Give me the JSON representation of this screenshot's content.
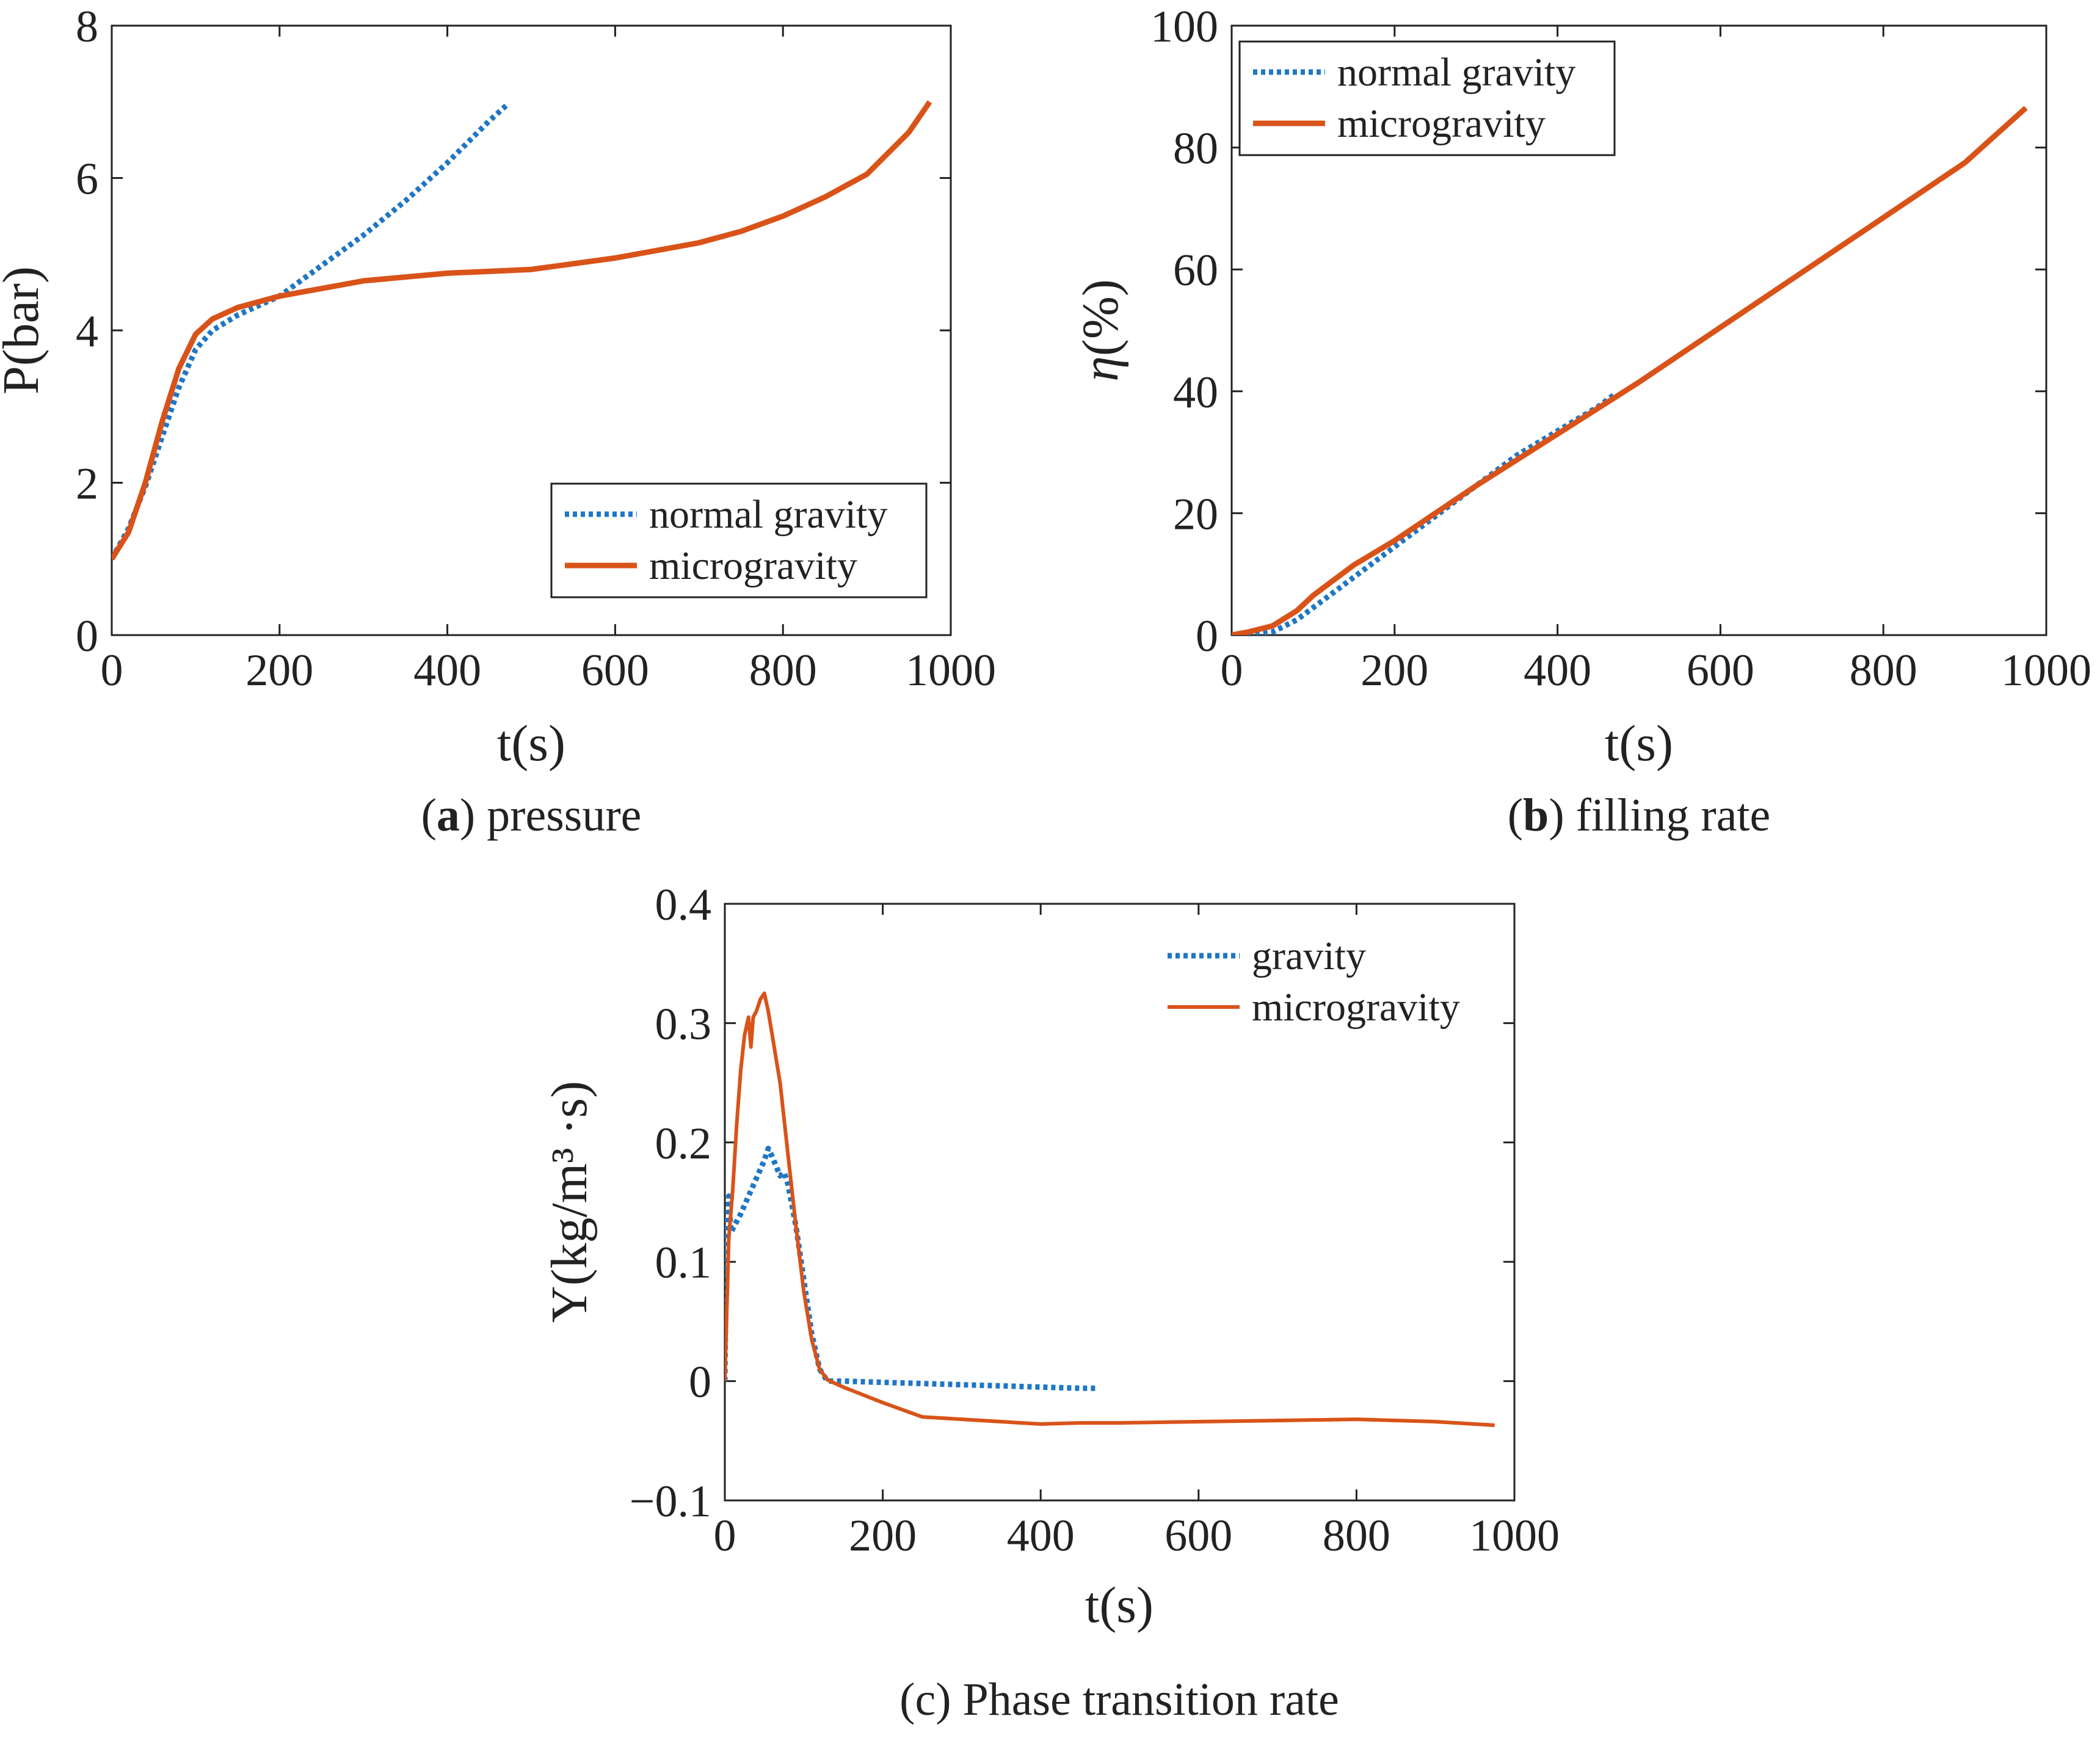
{
  "colors": {
    "normal_gravity": "#1f77c4",
    "microgravity": "#d95319",
    "axis": "#222222"
  },
  "chart_data": [
    {
      "type": "line",
      "id": "pressure",
      "caption": {
        "label": "a",
        "text": "pressure"
      },
      "xlabel": "t(s)",
      "ylabel": "P(bar)",
      "xlim": [
        0,
        1000
      ],
      "ylim": [
        0,
        8
      ],
      "xticks": [
        "0",
        "200",
        "400",
        "600",
        "800",
        "1000"
      ],
      "yticks": [
        "0",
        "2",
        "4",
        "6",
        "8"
      ],
      "legend_position": "bottom-right",
      "series": [
        {
          "name": "normal gravity",
          "style": "dotted",
          "x": [
            0,
            20,
            40,
            60,
            80,
            100,
            120,
            150,
            200,
            250,
            300,
            350,
            400,
            450,
            470
          ],
          "y": [
            1.0,
            1.4,
            1.95,
            2.6,
            3.25,
            3.75,
            4.0,
            4.2,
            4.45,
            4.85,
            5.25,
            5.7,
            6.2,
            6.75,
            6.95
          ]
        },
        {
          "name": "microgravity",
          "style": "solid",
          "x": [
            0,
            20,
            40,
            60,
            80,
            100,
            120,
            150,
            200,
            300,
            400,
            500,
            600,
            700,
            750,
            800,
            850,
            900,
            950,
            975
          ],
          "y": [
            1.0,
            1.35,
            2.0,
            2.8,
            3.5,
            3.95,
            4.15,
            4.3,
            4.45,
            4.65,
            4.75,
            4.8,
            4.95,
            5.15,
            5.3,
            5.5,
            5.75,
            6.05,
            6.6,
            7.0
          ]
        }
      ]
    },
    {
      "type": "line",
      "id": "filling-rate",
      "caption": {
        "label": "b",
        "text": "filling rate"
      },
      "xlabel": "t(s)",
      "ylabel": "η(%)",
      "xlim": [
        0,
        1000
      ],
      "ylim": [
        0,
        100
      ],
      "xticks": [
        "0",
        "200",
        "400",
        "600",
        "800",
        "1000"
      ],
      "yticks": [
        "0",
        "20",
        "40",
        "60",
        "80",
        "100"
      ],
      "legend_position": "top-left",
      "series": [
        {
          "name": "normal gravity",
          "style": "dotted",
          "x": [
            0,
            20,
            50,
            80,
            100,
            150,
            200,
            250,
            300,
            350,
            400,
            450,
            470
          ],
          "y": [
            0,
            0,
            0.5,
            2.5,
            4.5,
            9.5,
            14.5,
            19.5,
            24.5,
            29.5,
            33.5,
            37.5,
            39.5
          ]
        },
        {
          "name": "microgravity",
          "style": "solid",
          "x": [
            0,
            20,
            50,
            80,
            100,
            150,
            200,
            300,
            400,
            500,
            600,
            700,
            800,
            900,
            975
          ],
          "y": [
            0,
            0.5,
            1.5,
            4.0,
            6.5,
            11.5,
            15.5,
            24.5,
            33.0,
            41.5,
            50.5,
            59.5,
            68.5,
            77.5,
            86.5
          ]
        }
      ]
    },
    {
      "type": "line",
      "id": "phase-transition-rate",
      "caption": {
        "label": "c",
        "text": "Phase transition rate"
      },
      "xlabel": "t(s)",
      "ylabel": "Y(kg/m³ ·s)",
      "xlim": [
        0,
        1000
      ],
      "ylim": [
        -0.1,
        0.4
      ],
      "xticks": [
        "0",
        "200",
        "400",
        "600",
        "800",
        "1000"
      ],
      "yticks": [
        "−0.1",
        "0",
        "0.1",
        "0.2",
        "0.3",
        "0.4"
      ],
      "legend_position": "top-right",
      "series": [
        {
          "name": "gravity",
          "style": "dotted",
          "x": [
            0,
            2,
            5,
            8,
            12,
            20,
            30,
            40,
            50,
            55,
            60,
            65,
            70,
            75,
            80,
            90,
            100,
            110,
            120,
            130,
            150,
            200,
            250,
            300,
            350,
            400,
            450,
            470
          ],
          "y": [
            0.0,
            0.12,
            0.155,
            0.125,
            0.13,
            0.14,
            0.155,
            0.17,
            0.185,
            0.195,
            0.188,
            0.18,
            0.172,
            0.175,
            0.165,
            0.13,
            0.085,
            0.04,
            0.01,
            0.0,
            0.0,
            -0.001,
            -0.002,
            -0.003,
            -0.004,
            -0.005,
            -0.006,
            -0.006
          ]
        },
        {
          "name": "microgravity",
          "style": "solid",
          "x": [
            0,
            5,
            10,
            15,
            20,
            25,
            30,
            33,
            36,
            40,
            45,
            50,
            55,
            60,
            65,
            70,
            80,
            90,
            100,
            110,
            120,
            130,
            140,
            150,
            200,
            250,
            300,
            350,
            400,
            450,
            500,
            600,
            700,
            800,
            900,
            975
          ],
          "y": [
            0.0,
            0.12,
            0.16,
            0.215,
            0.26,
            0.29,
            0.305,
            0.28,
            0.305,
            0.31,
            0.32,
            0.325,
            0.31,
            0.29,
            0.27,
            0.25,
            0.19,
            0.13,
            0.075,
            0.035,
            0.01,
            0.001,
            -0.002,
            -0.005,
            -0.018,
            -0.03,
            -0.032,
            -0.034,
            -0.036,
            -0.035,
            -0.035,
            -0.034,
            -0.033,
            -0.032,
            -0.034,
            -0.037
          ]
        }
      ]
    }
  ]
}
